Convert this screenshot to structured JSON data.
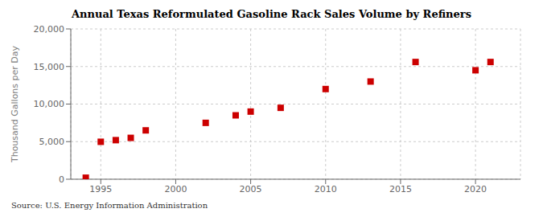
{
  "chart_data": {
    "type": "scatter",
    "title": "Annual Texas Reformulated Gasoline Rack Sales Volume by Refiners",
    "ylabel": "Thousand Gallons per Day",
    "source": "Source: U.S. Energy Information Administration",
    "x": [
      1994,
      1995,
      1996,
      1997,
      1998,
      2002,
      2004,
      2005,
      2007,
      2010,
      2013,
      2016,
      2020,
      2021
    ],
    "values": [
      200,
      4980,
      5200,
      5500,
      6500,
      7500,
      8500,
      9000,
      9500,
      12000,
      13000,
      15600,
      14500,
      15600
    ],
    "xlim": [
      1993,
      2023
    ],
    "ylim": [
      0,
      20000
    ],
    "xticks": [
      1995,
      2000,
      2005,
      2010,
      2015,
      2020
    ],
    "yticks": [
      0,
      {
        "value": 5000,
        "label": "5,000"
      },
      {
        "value": 10000,
        "label": "10,000"
      },
      {
        "value": 15000,
        "label": "15,000"
      },
      {
        "value": 20000,
        "label": "20,000"
      }
    ],
    "color": "#cc0000",
    "marker": "square",
    "grid": true
  }
}
